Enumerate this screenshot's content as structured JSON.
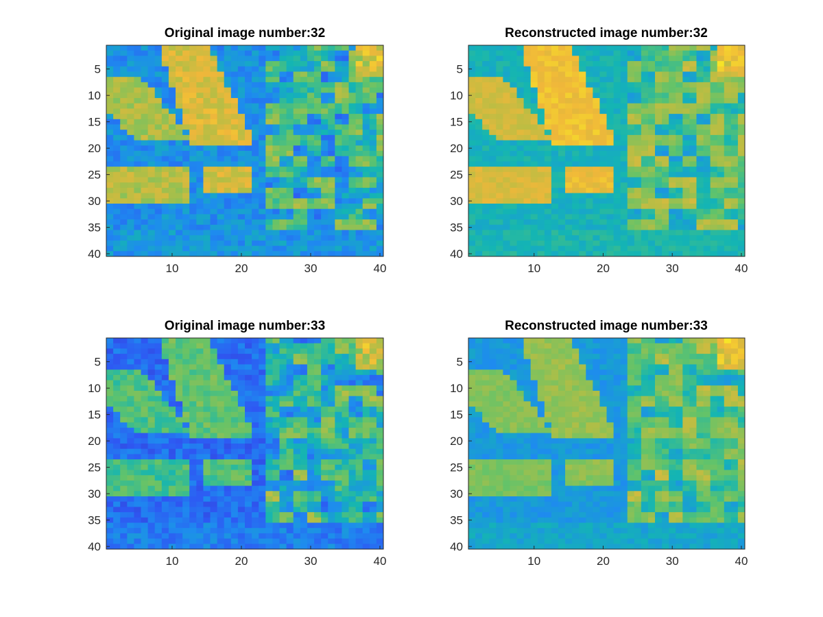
{
  "figure": {
    "background": "#ffffff"
  },
  "chart_data": [
    {
      "type": "heatmap",
      "title": "Original image number:32",
      "xlabel": "",
      "ylabel": "",
      "xlim": [
        0.5,
        40.5
      ],
      "ylim": [
        40.5,
        0.5
      ],
      "y_reversed": true,
      "xticks": [
        10,
        20,
        30,
        40
      ],
      "yticks": [
        5,
        10,
        15,
        20,
        25,
        30,
        35,
        40
      ],
      "xtick_labels": [
        "10",
        "20",
        "30",
        "40"
      ],
      "ytick_labels": [
        "5",
        "10",
        "15",
        "20",
        "25",
        "30",
        "35",
        "40"
      ],
      "grid": false,
      "colormap": "parula",
      "image_number": 32,
      "variant": "original",
      "cells": "40x40 pixel intensity grid"
    },
    {
      "type": "heatmap",
      "title": "Reconstructed image number:32",
      "xlabel": "",
      "ylabel": "",
      "xlim": [
        0.5,
        40.5
      ],
      "ylim": [
        40.5,
        0.5
      ],
      "y_reversed": true,
      "xticks": [
        10,
        20,
        30,
        40
      ],
      "yticks": [
        5,
        10,
        15,
        20,
        25,
        30,
        35,
        40
      ],
      "xtick_labels": [
        "10",
        "20",
        "30",
        "40"
      ],
      "ytick_labels": [
        "5",
        "10",
        "15",
        "20",
        "25",
        "30",
        "35",
        "40"
      ],
      "grid": false,
      "colormap": "parula",
      "image_number": 32,
      "variant": "reconstructed",
      "cells": "40x40 pixel intensity grid"
    },
    {
      "type": "heatmap",
      "title": "Original image number:33",
      "xlabel": "",
      "ylabel": "",
      "xlim": [
        0.5,
        40.5
      ],
      "ylim": [
        40.5,
        0.5
      ],
      "y_reversed": true,
      "xticks": [
        10,
        20,
        30,
        40
      ],
      "yticks": [
        5,
        10,
        15,
        20,
        25,
        30,
        35,
        40
      ],
      "xtick_labels": [
        "10",
        "20",
        "30",
        "40"
      ],
      "ytick_labels": [
        "5",
        "10",
        "15",
        "20",
        "25",
        "30",
        "35",
        "40"
      ],
      "grid": false,
      "colormap": "parula",
      "image_number": 33,
      "variant": "original",
      "cells": "40x40 pixel intensity grid"
    },
    {
      "type": "heatmap",
      "title": "Reconstructed image number:33",
      "xlabel": "",
      "ylabel": "",
      "xlim": [
        0.5,
        40.5
      ],
      "ylim": [
        40.5,
        0.5
      ],
      "y_reversed": true,
      "xticks": [
        10,
        20,
        30,
        40
      ],
      "yticks": [
        5,
        10,
        15,
        20,
        25,
        30,
        35,
        40
      ],
      "xtick_labels": [
        "10",
        "20",
        "30",
        "40"
      ],
      "ytick_labels": [
        "5",
        "10",
        "15",
        "20",
        "25",
        "30",
        "35",
        "40"
      ],
      "grid": false,
      "colormap": "parula",
      "image_number": 33,
      "variant": "reconstructed",
      "cells": "40x40 pixel intensity grid"
    }
  ],
  "colors": {
    "colormap_stops": [
      "#3e26a8",
      "#2e58f3",
      "#1e8bef",
      "#14b5b3",
      "#62c36a",
      "#b3be45",
      "#f0b73a",
      "#f9f91e"
    ]
  }
}
